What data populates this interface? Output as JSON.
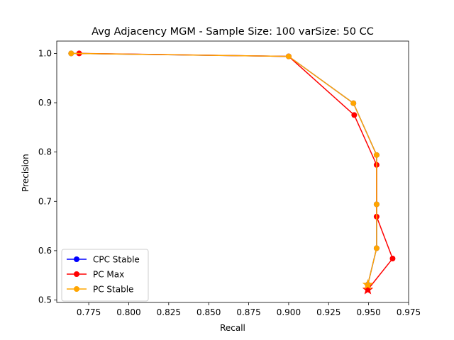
{
  "chart_data": {
    "type": "line",
    "title": "Avg Adjacency MGM - Sample Size: 100 varSize: 50 CC",
    "xlabel": "Recall",
    "ylabel": "Precision",
    "xlim": [
      0.755,
      0.975
    ],
    "ylim": [
      0.495,
      1.025
    ],
    "xticks": [
      0.775,
      0.8,
      0.825,
      0.85,
      0.875,
      0.9,
      0.925,
      0.95,
      0.975
    ],
    "xtick_labels": [
      "0.775",
      "0.800",
      "0.825",
      "0.850",
      "0.875",
      "0.900",
      "0.925",
      "0.950",
      "0.975"
    ],
    "yticks": [
      0.5,
      0.6,
      0.7,
      0.8,
      0.9,
      1.0
    ],
    "ytick_labels": [
      "0.5",
      "0.6",
      "0.7",
      "0.8",
      "0.9",
      "1.0"
    ],
    "grid": false,
    "legend_position": "lower-left",
    "series": [
      {
        "name": "CPC Stable",
        "color": "#0000ff",
        "marker": "circle",
        "x": [
          0.764,
          0.9,
          0.9405,
          0.955,
          0.955,
          0.955,
          0.9495
        ],
        "y": [
          1.0,
          0.994,
          0.899,
          0.794,
          0.694,
          0.605,
          0.531
        ]
      },
      {
        "name": "PC Max",
        "color": "#ff0000",
        "marker": "circle",
        "x": [
          0.769,
          0.9,
          0.941,
          0.955,
          0.955,
          0.965,
          0.9495
        ],
        "y": [
          1.0,
          0.994,
          0.875,
          0.774,
          0.669,
          0.584,
          0.521
        ],
        "endpoint_marker": "star"
      },
      {
        "name": "PC Stable",
        "color": "#ffa500",
        "marker": "circle",
        "x": [
          0.764,
          0.9,
          0.9405,
          0.955,
          0.955,
          0.955,
          0.9495
        ],
        "y": [
          1.0,
          0.994,
          0.899,
          0.794,
          0.694,
          0.605,
          0.531
        ],
        "endpoint_marker": "star"
      }
    ]
  }
}
